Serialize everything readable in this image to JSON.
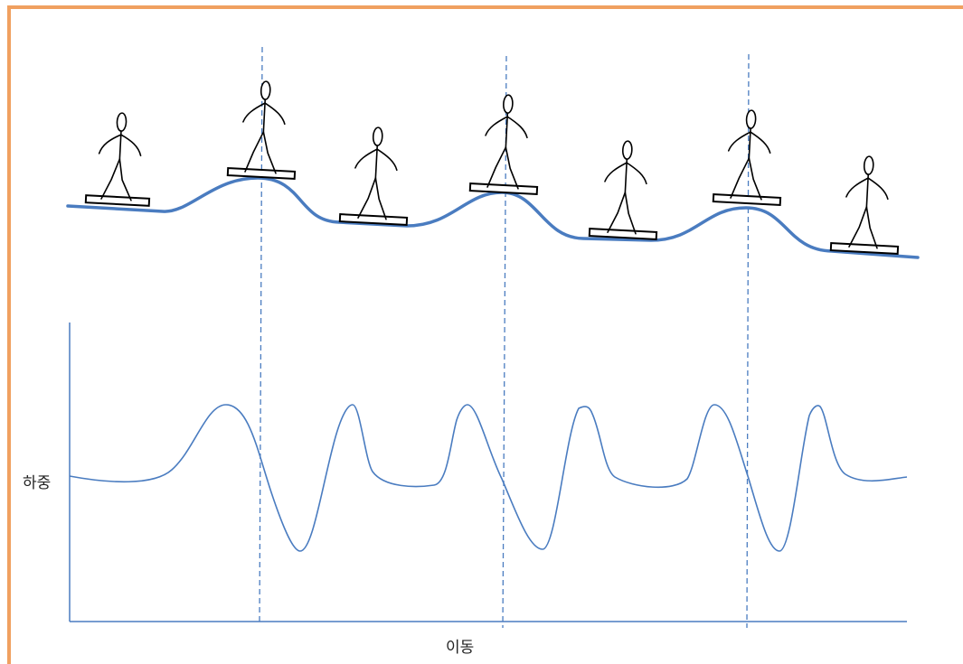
{
  "axes": {
    "y_label": "하중",
    "x_label": "이동"
  },
  "colors": {
    "frame": "#f0a060",
    "curve": "#4a7cc0",
    "figure": "#000000"
  },
  "figure_count": 7,
  "guide_line_count": 3
}
